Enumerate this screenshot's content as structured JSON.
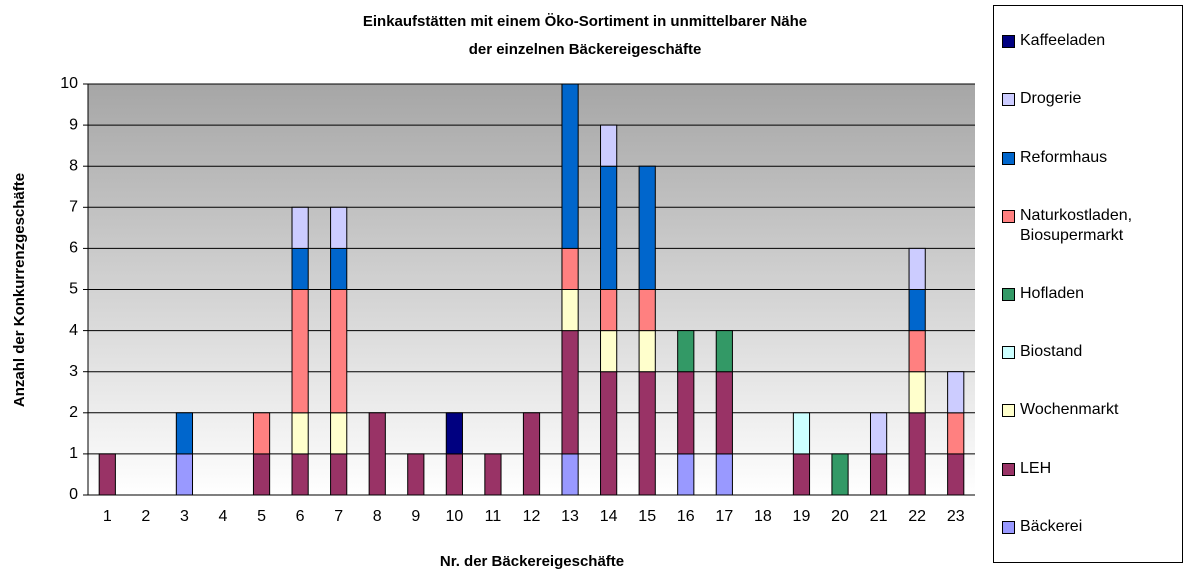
{
  "chart_data": {
    "type": "stacked_bar",
    "title": [
      "Einkaufstätten mit einem Öko-Sortiment in unmittelbarer Nähe",
      "der einzelnen Bäckereigeschäfte"
    ],
    "x_label": "Nr. der Bäckereigeschäfte",
    "y_label": "Anzahl der Konkurrenzgeschäfte",
    "categories": [
      "1",
      "2",
      "3",
      "4",
      "5",
      "6",
      "7",
      "8",
      "9",
      "10",
      "11",
      "12",
      "13",
      "14",
      "15",
      "16",
      "17",
      "18",
      "19",
      "20",
      "21",
      "22",
      "23"
    ],
    "series": [
      {
        "name": "Bäckerei",
        "color": "#9999ff",
        "values": [
          0,
          0,
          1,
          0,
          0,
          0,
          0,
          0,
          0,
          0,
          0,
          0,
          1,
          0,
          0,
          1,
          1,
          0,
          0,
          0,
          0,
          0,
          0
        ]
      },
      {
        "name": "LEH",
        "color": "#993366",
        "values": [
          1,
          0,
          0,
          0,
          1,
          1,
          1,
          2,
          1,
          1,
          1,
          2,
          3,
          3,
          3,
          2,
          2,
          0,
          1,
          0,
          1,
          2,
          1
        ]
      },
      {
        "name": "Wochenmarkt",
        "color": "#ffffcc",
        "values": [
          0,
          0,
          0,
          0,
          0,
          1,
          1,
          0,
          0,
          0,
          0,
          0,
          1,
          1,
          1,
          0,
          0,
          0,
          0,
          0,
          0,
          1,
          0
        ]
      },
      {
        "name": "Biostand",
        "color": "#ccffff",
        "values": [
          0,
          0,
          0,
          0,
          0,
          0,
          0,
          0,
          0,
          0,
          0,
          0,
          0,
          0,
          0,
          0,
          0,
          0,
          1,
          0,
          0,
          0,
          0
        ]
      },
      {
        "name": "Hofladen",
        "color": "#339966",
        "values": [
          0,
          0,
          0,
          0,
          0,
          0,
          0,
          0,
          0,
          0,
          0,
          0,
          0,
          0,
          0,
          1,
          1,
          0,
          0,
          1,
          0,
          0,
          0
        ]
      },
      {
        "name": "Naturkostladen, Biosupermarkt",
        "color": "#ff8080",
        "values": [
          0,
          0,
          0,
          0,
          1,
          3,
          3,
          0,
          0,
          0,
          0,
          0,
          1,
          1,
          1,
          0,
          0,
          0,
          0,
          0,
          0,
          1,
          1
        ]
      },
      {
        "name": "Reformhaus",
        "color": "#0066cc",
        "values": [
          0,
          0,
          1,
          0,
          0,
          1,
          1,
          0,
          0,
          0,
          0,
          0,
          4,
          3,
          3,
          0,
          0,
          0,
          0,
          0,
          0,
          1,
          0
        ]
      },
      {
        "name": "Drogerie",
        "color": "#ccccff",
        "values": [
          0,
          0,
          0,
          0,
          0,
          1,
          1,
          0,
          0,
          0,
          0,
          0,
          0,
          1,
          0,
          0,
          0,
          0,
          0,
          0,
          1,
          1,
          1
        ]
      },
      {
        "name": "Kaffeeladen",
        "color": "#000080",
        "values": [
          0,
          0,
          0,
          0,
          0,
          0,
          0,
          0,
          0,
          1,
          0,
          0,
          0,
          0,
          0,
          0,
          0,
          0,
          0,
          0,
          0,
          0,
          0
        ]
      }
    ],
    "ylim": [
      0,
      10
    ],
    "yticks": [
      0,
      1,
      2,
      3,
      4,
      5,
      6,
      7,
      8,
      9,
      10
    ],
    "grid": true,
    "legend": "right"
  }
}
